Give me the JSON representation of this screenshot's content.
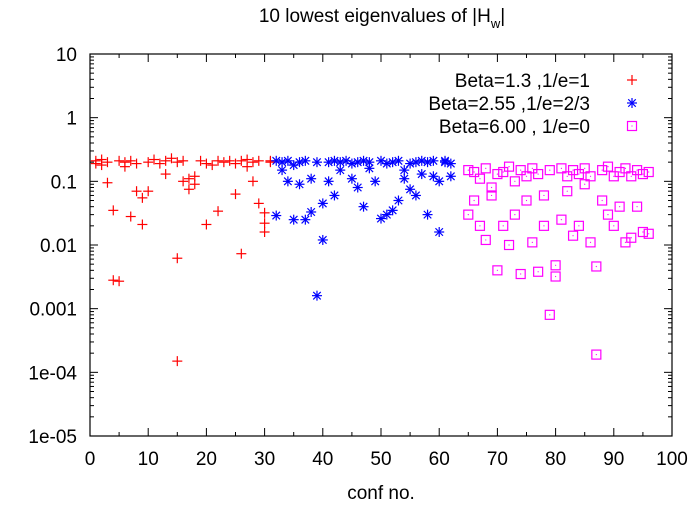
{
  "chart_data": {
    "type": "scatter",
    "title_main": "10 lowest eigenvalues of |H",
    "title_sub": "w",
    "title_close": "|",
    "xlabel": "conf no.",
    "ylabel": "",
    "xlim": [
      0,
      100
    ],
    "ylim": [
      1e-05,
      10
    ],
    "yscale": "log",
    "grid": false,
    "legend_position": "top-right",
    "x_ticks": [
      0,
      10,
      20,
      30,
      40,
      50,
      60,
      70,
      80,
      90,
      100
    ],
    "x_tick_labels": [
      "0",
      "10",
      "20",
      "30",
      "40",
      "50",
      "60",
      "70",
      "80",
      "90",
      "100"
    ],
    "y_ticks": [
      1e-05,
      0.0001,
      0.001,
      0.01,
      0.1,
      1,
      10
    ],
    "y_tick_labels": [
      "1e-05",
      "1e-04",
      "0.001",
      "0.01",
      "0.1",
      "1",
      "10"
    ],
    "series": [
      {
        "name": "Beta=1.3   ,1/e=1",
        "marker": "plus",
        "color": "#ff0000",
        "points": [
          [
            1,
            0.21
          ],
          [
            1,
            0.19
          ],
          [
            2,
            0.22
          ],
          [
            2,
            0.18
          ],
          [
            3,
            0.2
          ],
          [
            3,
            0.095
          ],
          [
            4,
            0.035
          ],
          [
            4,
            0.0028
          ],
          [
            5,
            0.21
          ],
          [
            5,
            0.0027
          ],
          [
            6,
            0.2
          ],
          [
            6,
            0.17
          ],
          [
            7,
            0.21
          ],
          [
            7,
            0.028
          ],
          [
            8,
            0.07
          ],
          [
            8,
            0.19
          ],
          [
            9,
            0.055
          ],
          [
            9,
            0.021
          ],
          [
            10,
            0.07
          ],
          [
            10,
            0.2
          ],
          [
            11,
            0.22
          ],
          [
            12,
            0.19
          ],
          [
            13,
            0.21
          ],
          [
            13,
            0.13
          ],
          [
            14,
            0.23
          ],
          [
            15,
            0.0062
          ],
          [
            15,
            0.00015
          ],
          [
            15,
            0.2
          ],
          [
            16,
            0.1
          ],
          [
            16,
            0.21
          ],
          [
            17,
            0.11
          ],
          [
            17,
            0.075
          ],
          [
            18,
            0.12
          ],
          [
            18,
            0.09
          ],
          [
            19,
            0.21
          ],
          [
            20,
            0.021
          ],
          [
            20,
            0.19
          ],
          [
            21,
            0.18
          ],
          [
            22,
            0.034
          ],
          [
            22,
            0.21
          ],
          [
            23,
            0.2
          ],
          [
            24,
            0.21
          ],
          [
            25,
            0.19
          ],
          [
            25,
            0.063
          ],
          [
            26,
            0.0073
          ],
          [
            26,
            0.21
          ],
          [
            27,
            0.22
          ],
          [
            27,
            0.17
          ],
          [
            28,
            0.2
          ],
          [
            28,
            0.1
          ],
          [
            29,
            0.045
          ],
          [
            29,
            0.21
          ],
          [
            30,
            0.032
          ],
          [
            30,
            0.022
          ],
          [
            30,
            0.016
          ],
          [
            31,
            0.2
          ],
          [
            31,
            0.21
          ]
        ]
      },
      {
        "name": "Beta=2.55 ,1/e=2/3",
        "marker": "star",
        "color": "#0000ff",
        "points": [
          [
            32,
            0.21
          ],
          [
            32,
            0.029
          ],
          [
            33,
            0.2
          ],
          [
            33,
            0.15
          ],
          [
            34,
            0.21
          ],
          [
            34,
            0.1
          ],
          [
            35,
            0.18
          ],
          [
            35,
            0.025
          ],
          [
            36,
            0.09
          ],
          [
            36,
            0.2
          ],
          [
            37,
            0.21
          ],
          [
            37,
            0.025
          ],
          [
            38,
            0.11
          ],
          [
            38,
            0.033
          ],
          [
            39,
            0.0016
          ],
          [
            39,
            0.2
          ],
          [
            40,
            0.012
          ],
          [
            40,
            0.045
          ],
          [
            41,
            0.2
          ],
          [
            41,
            0.1
          ],
          [
            42,
            0.06
          ],
          [
            42,
            0.21
          ],
          [
            43,
            0.15
          ],
          [
            43,
            0.2
          ],
          [
            44,
            0.21
          ],
          [
            45,
            0.11
          ],
          [
            45,
            0.19
          ],
          [
            46,
            0.08
          ],
          [
            46,
            0.2
          ],
          [
            47,
            0.04
          ],
          [
            47,
            0.21
          ],
          [
            48,
            0.16
          ],
          [
            48,
            0.2
          ],
          [
            49,
            0.1
          ],
          [
            50,
            0.026
          ],
          [
            50,
            0.21
          ],
          [
            51,
            0.03
          ],
          [
            51,
            0.19
          ],
          [
            52,
            0.035
          ],
          [
            52,
            0.2
          ],
          [
            53,
            0.05
          ],
          [
            53,
            0.21
          ],
          [
            54,
            0.15
          ],
          [
            54,
            0.11
          ],
          [
            55,
            0.19
          ],
          [
            55,
            0.075
          ],
          [
            56,
            0.2
          ],
          [
            56,
            0.06
          ],
          [
            57,
            0.21
          ],
          [
            57,
            0.13
          ],
          [
            58,
            0.03
          ],
          [
            58,
            0.2
          ],
          [
            59,
            0.12
          ],
          [
            59,
            0.21
          ],
          [
            60,
            0.016
          ],
          [
            60,
            0.1
          ],
          [
            61,
            0.2
          ],
          [
            61,
            0.21
          ],
          [
            62,
            0.19
          ],
          [
            62,
            0.12
          ]
        ]
      },
      {
        "name": "Beta=6.00 , 1/e=0",
        "marker": "square",
        "color": "#ff00ff",
        "points": [
          [
            65,
            0.15
          ],
          [
            65,
            0.03
          ],
          [
            66,
            0.05
          ],
          [
            66,
            0.14
          ],
          [
            67,
            0.02
          ],
          [
            67,
            0.11
          ],
          [
            68,
            0.012
          ],
          [
            68,
            0.16
          ],
          [
            69,
            0.08
          ],
          [
            69,
            0.06
          ],
          [
            70,
            0.004
          ],
          [
            70,
            0.13
          ],
          [
            71,
            0.14
          ],
          [
            71,
            0.02
          ],
          [
            72,
            0.01
          ],
          [
            72,
            0.17
          ],
          [
            73,
            0.03
          ],
          [
            73,
            0.1
          ],
          [
            74,
            0.0035
          ],
          [
            74,
            0.15
          ],
          [
            75,
            0.05
          ],
          [
            75,
            0.12
          ],
          [
            76,
            0.011
          ],
          [
            76,
            0.16
          ],
          [
            77,
            0.0038
          ],
          [
            77,
            0.13
          ],
          [
            78,
            0.06
          ],
          [
            78,
            0.02
          ],
          [
            79,
            0.0008
          ],
          [
            79,
            0.15
          ],
          [
            80,
            0.0048
          ],
          [
            80,
            0.0032
          ],
          [
            81,
            0.025
          ],
          [
            81,
            0.16
          ],
          [
            82,
            0.07
          ],
          [
            82,
            0.12
          ],
          [
            83,
            0.014
          ],
          [
            83,
            0.15
          ],
          [
            84,
            0.02
          ],
          [
            84,
            0.13
          ],
          [
            85,
            0.09
          ],
          [
            85,
            0.16
          ],
          [
            86,
            0.011
          ],
          [
            86,
            0.12
          ],
          [
            87,
            0.0046
          ],
          [
            87,
            0.00019
          ],
          [
            88,
            0.15
          ],
          [
            88,
            0.05
          ],
          [
            89,
            0.17
          ],
          [
            89,
            0.03
          ],
          [
            90,
            0.02
          ],
          [
            90,
            0.12
          ],
          [
            91,
            0.04
          ],
          [
            91,
            0.14
          ],
          [
            92,
            0.011
          ],
          [
            92,
            0.16
          ],
          [
            93,
            0.013
          ],
          [
            93,
            0.12
          ],
          [
            94,
            0.04
          ],
          [
            94,
            0.15
          ],
          [
            95,
            0.016
          ],
          [
            95,
            0.13
          ],
          [
            96,
            0.015
          ],
          [
            96,
            0.14
          ]
        ]
      }
    ]
  }
}
